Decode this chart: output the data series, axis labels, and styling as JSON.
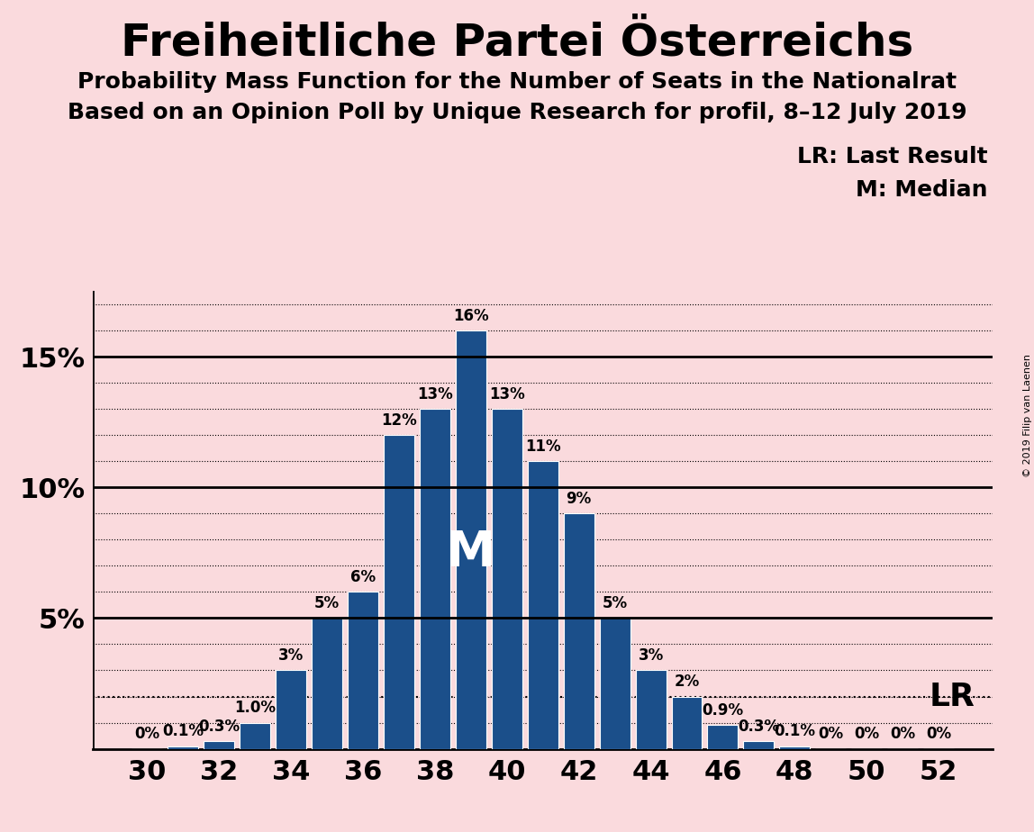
{
  "title": "Freiheitliche Partei Österreichs",
  "subtitle1": "Probability Mass Function for the Number of Seats in the Nationalrat",
  "subtitle2": "Based on an Opinion Poll by Unique Research for profil, 8–12 July 2019",
  "watermark": "© 2019 Filip van Laenen",
  "seats": [
    30,
    31,
    32,
    33,
    34,
    35,
    36,
    37,
    38,
    39,
    40,
    41,
    42,
    43,
    44,
    45,
    46,
    47,
    48,
    49,
    50,
    51,
    52
  ],
  "probs": [
    0.0,
    0.1,
    0.3,
    1.0,
    3.0,
    5.0,
    6.0,
    12.0,
    13.0,
    16.0,
    13.0,
    11.0,
    9.0,
    5.0,
    3.0,
    2.0,
    0.9,
    0.3,
    0.1,
    0.0,
    0.0,
    0.0,
    0.0
  ],
  "labels": [
    "0%",
    "0.1%",
    "0.3%",
    "1.0%",
    "3%",
    "5%",
    "6%",
    "12%",
    "13%",
    "16%",
    "13%",
    "11%",
    "9%",
    "5%",
    "3%",
    "2%",
    "0.9%",
    "0.3%",
    "0.1%",
    "0%",
    "0%",
    "0%",
    "0%"
  ],
  "bar_color": "#1B4F8A",
  "bg_color": "#FADADD",
  "median_seat": 39,
  "lr_value": 2.0,
  "ylim": [
    0,
    17.5
  ],
  "xticks": [
    30,
    32,
    34,
    36,
    38,
    40,
    42,
    44,
    46,
    48,
    50,
    52
  ],
  "title_fontsize": 36,
  "subtitle_fontsize": 18,
  "label_fontsize": 12,
  "bar_width": 0.85
}
